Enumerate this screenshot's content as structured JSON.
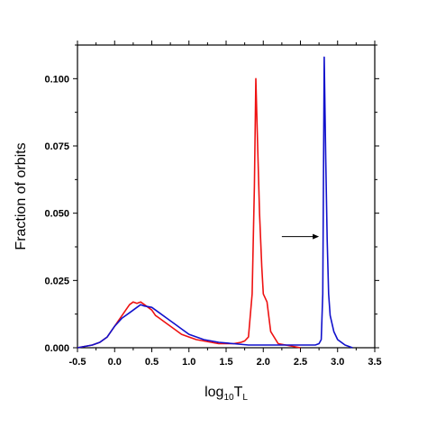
{
  "chart_data": {
    "type": "line",
    "title": "",
    "xlabel": {
      "main": "log",
      "sub": "10",
      "var": "T",
      "var_sub": "L"
    },
    "ylabel": "Fraction of orbits",
    "xlim": [
      -0.5,
      3.5
    ],
    "ylim": [
      0,
      0.1125
    ],
    "x_ticks": [
      "-0.5",
      "0.0",
      "0.5",
      "1.0",
      "1.5",
      "2.0",
      "2.5",
      "3.0",
      "3.5"
    ],
    "y_ticks": [
      "0.000",
      "0.025",
      "0.050",
      "0.075",
      "0.100"
    ],
    "grid": false,
    "legend": "none",
    "annotation": {
      "type": "arrow",
      "from": [
        2.25,
        0.0413
      ],
      "to": [
        2.75,
        0.0413
      ]
    },
    "series": [
      {
        "color": "#ee1111",
        "x": [
          -0.5,
          -0.3,
          -0.2,
          -0.1,
          0.0,
          0.05,
          0.1,
          0.15,
          0.2,
          0.25,
          0.3,
          0.35,
          0.4,
          0.45,
          0.5,
          0.55,
          0.6,
          0.7,
          0.8,
          0.9,
          1.0,
          1.1,
          1.2,
          1.3,
          1.4,
          1.5,
          1.6,
          1.7,
          1.75,
          1.8,
          1.85,
          1.88,
          1.9,
          1.92,
          1.95,
          1.98,
          2.0,
          2.05,
          2.1,
          2.2,
          2.3,
          2.4,
          2.5
        ],
        "y": [
          0.0,
          0.001,
          0.002,
          0.004,
          0.008,
          0.01,
          0.012,
          0.014,
          0.016,
          0.017,
          0.0165,
          0.017,
          0.016,
          0.015,
          0.014,
          0.012,
          0.011,
          0.009,
          0.007,
          0.005,
          0.004,
          0.003,
          0.0025,
          0.002,
          0.0015,
          0.0015,
          0.0015,
          0.002,
          0.0025,
          0.004,
          0.02,
          0.06,
          0.1,
          0.08,
          0.05,
          0.03,
          0.02,
          0.017,
          0.006,
          0.0015,
          0.001,
          0.0005,
          0.0
        ]
      },
      {
        "color": "#1111cc",
        "x": [
          -0.5,
          -0.3,
          -0.2,
          -0.1,
          0.0,
          0.1,
          0.2,
          0.3,
          0.35,
          0.4,
          0.5,
          0.6,
          0.7,
          0.8,
          0.9,
          1.0,
          1.2,
          1.4,
          1.6,
          1.8,
          2.0,
          2.2,
          2.4,
          2.6,
          2.7,
          2.75,
          2.78,
          2.8,
          2.82,
          2.84,
          2.86,
          2.88,
          2.9,
          2.95,
          3.0,
          3.1,
          3.2
        ],
        "y": [
          0.0,
          0.001,
          0.002,
          0.004,
          0.008,
          0.011,
          0.013,
          0.015,
          0.016,
          0.0155,
          0.015,
          0.013,
          0.011,
          0.009,
          0.007,
          0.005,
          0.003,
          0.002,
          0.0015,
          0.001,
          0.001,
          0.001,
          0.001,
          0.001,
          0.001,
          0.0015,
          0.003,
          0.02,
          0.108,
          0.07,
          0.04,
          0.02,
          0.012,
          0.006,
          0.003,
          0.001,
          0.0
        ]
      }
    ]
  }
}
